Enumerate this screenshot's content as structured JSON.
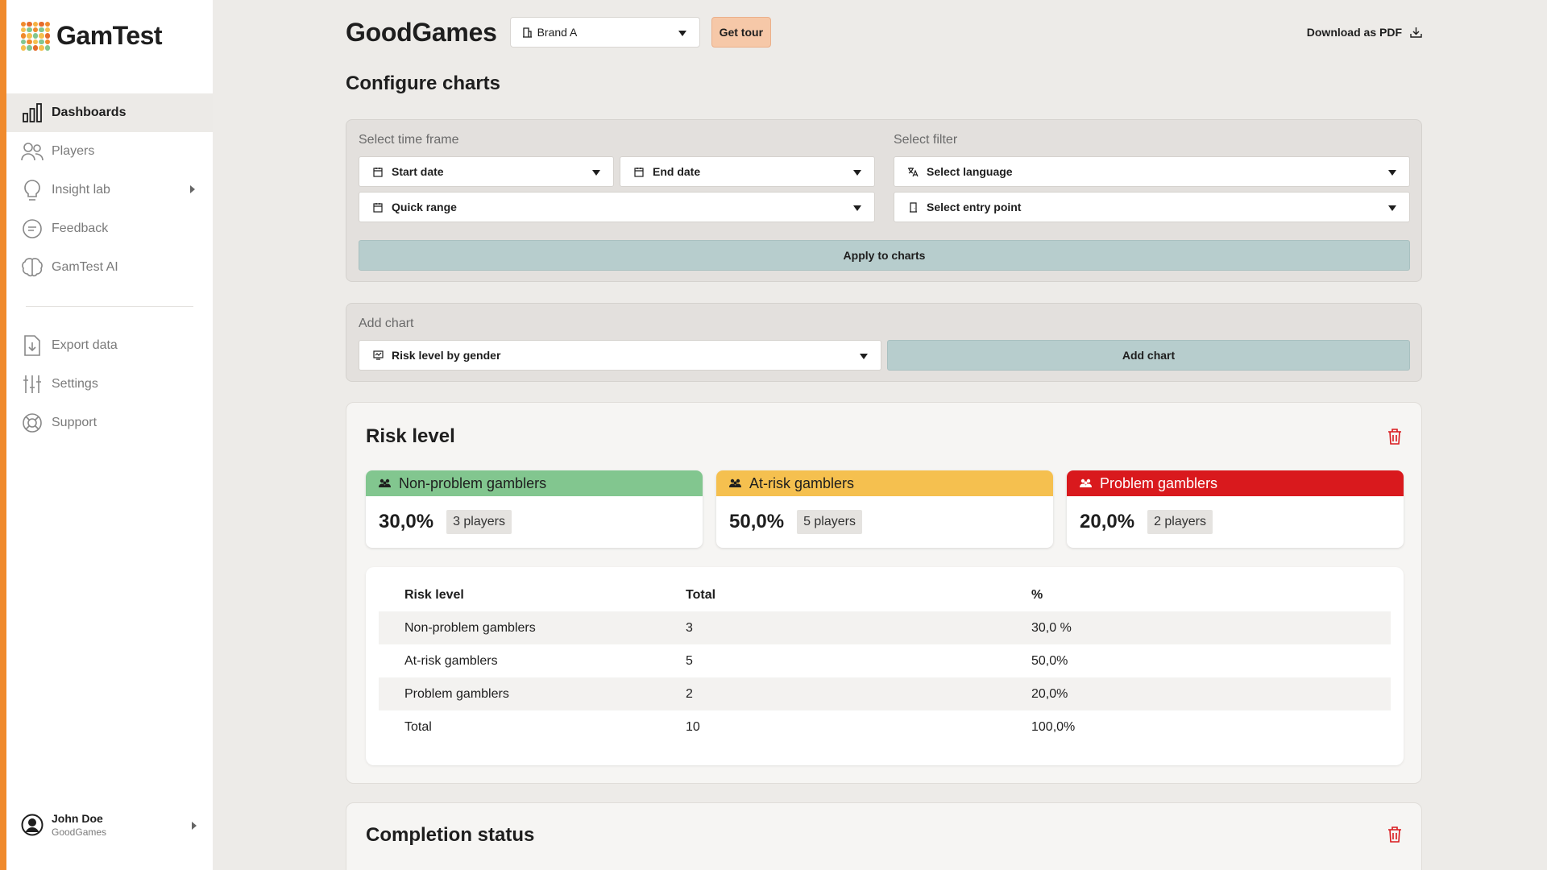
{
  "app": {
    "name": "GamTest"
  },
  "colors": {
    "accent": "#f08a2c",
    "non_problem": "#82c68f",
    "at_risk": "#f5c04f",
    "problem": "#d9191d",
    "teal_button": "#b7cdcd",
    "tour_button": "#f6c8a8"
  },
  "sidebar": {
    "items": [
      {
        "label": "Dashboards",
        "icon": "bar-chart-icon",
        "active": true
      },
      {
        "label": "Players",
        "icon": "users-icon"
      },
      {
        "label": "Insight lab",
        "icon": "lightbulb-icon",
        "has_submenu": true
      },
      {
        "label": "Feedback",
        "icon": "chat-bubble-icon"
      },
      {
        "label": "GamTest AI",
        "icon": "brain-icon"
      }
    ],
    "secondary_items": [
      {
        "label": "Export data",
        "icon": "file-download-icon"
      },
      {
        "label": "Settings",
        "icon": "sliders-icon"
      },
      {
        "label": "Support",
        "icon": "lifebuoy-icon"
      }
    ],
    "user": {
      "name": "John Doe",
      "org": "GoodGames"
    }
  },
  "header": {
    "title": "GoodGames",
    "brand_select": "Brand A",
    "tour_label": "Get tour",
    "download_label": "Download as PDF"
  },
  "configure": {
    "title": "Configure charts",
    "time_frame_label": "Select time frame",
    "filter_label": "Select filter",
    "start_date": "Start date",
    "end_date": "End date",
    "quick_range": "Quick range",
    "language": "Select language",
    "entry_point": "Select entry point",
    "apply_label": "Apply to charts"
  },
  "add_chart": {
    "label": "Add chart",
    "selected": "Risk level by gender",
    "button": "Add chart"
  },
  "risk_card": {
    "title": "Risk level",
    "stats": [
      {
        "label": "Non-problem gamblers",
        "pct": "30,0%",
        "players": "3 players"
      },
      {
        "label": "At-risk gamblers",
        "pct": "50,0%",
        "players": "5 players"
      },
      {
        "label": "Problem gamblers",
        "pct": "20,0%",
        "players": "2 players"
      }
    ],
    "table": {
      "headers": [
        "Risk level",
        "Total",
        "%"
      ],
      "rows": [
        [
          "Non-problem gamblers",
          "3",
          "30,0 %"
        ],
        [
          "At-risk gamblers",
          "5",
          "50,0%"
        ],
        [
          "Problem gamblers",
          "2",
          "20,0%"
        ],
        [
          "Total",
          "10",
          "100,0%"
        ]
      ]
    }
  },
  "completion_card": {
    "title": "Completion status"
  }
}
